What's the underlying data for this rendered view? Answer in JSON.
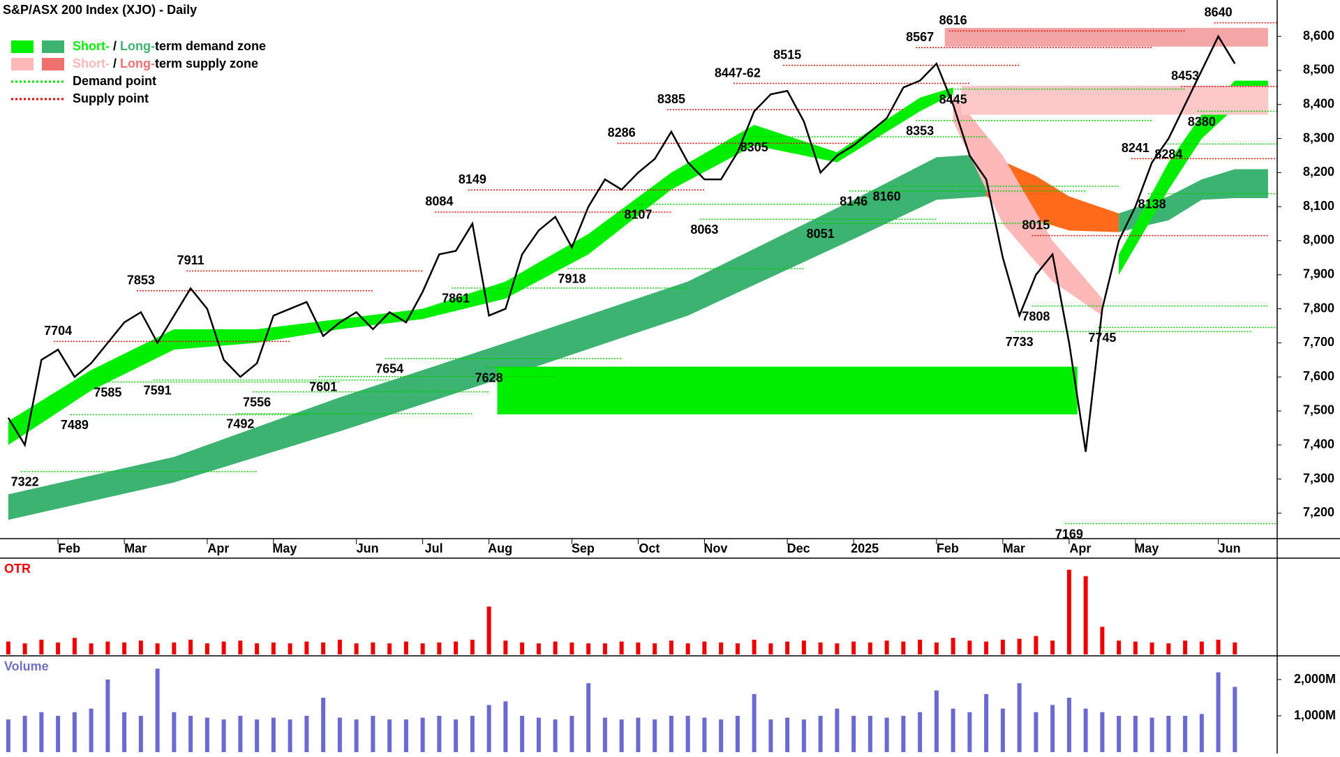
{
  "chart_data": [
    {
      "type": "line",
      "title": "S&P/ASX 200 Index (XJO) - Daily",
      "categories": [
        null,
        null,
        null,
        "Feb",
        null,
        null,
        null,
        "Mar",
        null,
        null,
        null,
        null,
        "Apr",
        null,
        null,
        null,
        "May",
        null,
        null,
        null,
        null,
        "Jun",
        null,
        null,
        null,
        "Jul",
        null,
        null,
        null,
        "Aug",
        null,
        null,
        null,
        null,
        "Sep",
        null,
        null,
        null,
        "Oct",
        null,
        null,
        null,
        "Nov",
        null,
        null,
        null,
        null,
        "Dec",
        null,
        null,
        null,
        "2025",
        null,
        null,
        null,
        null,
        "Feb",
        null,
        null,
        null,
        "Mar",
        null,
        null,
        null,
        "Apr",
        null,
        null,
        null,
        "May",
        null,
        null,
        null,
        null,
        "Jun",
        null
      ],
      "values": [
        7480,
        7400,
        7650,
        7680,
        7600,
        7640,
        7700,
        7760,
        7790,
        7700,
        7780,
        7860,
        7800,
        7650,
        7600,
        7640,
        7780,
        7800,
        7820,
        7720,
        7760,
        7790,
        7740,
        7790,
        7760,
        7850,
        7960,
        7970,
        8050,
        7780,
        7800,
        7960,
        8030,
        8070,
        7980,
        8100,
        8180,
        8150,
        8200,
        8240,
        8320,
        8230,
        8180,
        8180,
        8260,
        8380,
        8430,
        8440,
        8350,
        8200,
        8250,
        8280,
        8320,
        8360,
        8450,
        8470,
        8520,
        8400,
        8250,
        8180,
        7950,
        7780,
        7900,
        7960,
        7700,
        7380,
        7800,
        8000,
        8100,
        8230,
        8300,
        8400,
        8500,
        8600,
        8520
      ],
      "color": "#000000",
      "ylim": [
        7125,
        8670
      ],
      "yticks": [
        {
          "value": 7200,
          "label": "7,200"
        },
        {
          "value": 7300,
          "label": "7,300"
        },
        {
          "value": 7400,
          "label": "7,400"
        },
        {
          "value": 7500,
          "label": "7,500"
        },
        {
          "value": 7600,
          "label": "7,600"
        },
        {
          "value": 7700,
          "label": "7,700"
        },
        {
          "value": 7800,
          "label": "7,800"
        },
        {
          "value": 7900,
          "label": "7,900"
        },
        {
          "value": 8000,
          "label": "8,000"
        },
        {
          "value": 8100,
          "label": "8,100"
        },
        {
          "value": 8200,
          "label": "8,200"
        },
        {
          "value": 8300,
          "label": "8,300"
        },
        {
          "value": 8400,
          "label": "8,400"
        },
        {
          "value": 8500,
          "label": "8,500"
        },
        {
          "value": 8600,
          "label": "8,600"
        }
      ],
      "legend": [
        {
          "parts": [
            "Short-",
            " / ",
            "Long-",
            "term demand zone"
          ],
          "colors": [
            "#00ee00",
            "#3cb371"
          ]
        },
        {
          "parts": [
            "Short-",
            " / ",
            "Long-",
            "term supply zone"
          ],
          "colors": [
            "#ffb8b8",
            "#f07070"
          ]
        },
        {
          "parts": [
            "Demand point"
          ],
          "colors": [
            "#00dd00"
          ],
          "style": "dotted"
        },
        {
          "parts": [
            "Supply point"
          ],
          "colors": [
            "#dd0000"
          ],
          "style": "dotted"
        }
      ],
      "bands": [
        {
          "x": [
            0,
            10,
            20,
            30,
            41,
            51,
            56,
            59
          ],
          "lower": [
            7180,
            7290,
            7440,
            7600,
            7780,
            8005,
            8120,
            8130
          ],
          "upper": [
            7255,
            7365,
            7540,
            7700,
            7880,
            8120,
            8245,
            8255
          ],
          "color": "#3cb371"
        },
        {
          "x": [
            59,
            62,
            64,
            67
          ],
          "lower": [
            8130,
            8060,
            8030,
            8025
          ],
          "upper": [
            8255,
            8190,
            8130,
            8080
          ],
          "color": "#ff6a1a"
        },
        {
          "x": [
            67,
            70,
            72,
            74,
            76
          ],
          "lower": [
            8025,
            8060,
            8120,
            8125,
            8125
          ],
          "upper": [
            8080,
            8130,
            8180,
            8210,
            8210
          ],
          "color": "#3cb371"
        },
        {
          "x": [
            0,
            5,
            10,
            15,
            20,
            25,
            30,
            35,
            40,
            45,
            50,
            55,
            57
          ],
          "lower": [
            7400,
            7560,
            7680,
            7700,
            7740,
            7770,
            7830,
            7960,
            8150,
            8280,
            8230,
            8380,
            8430
          ],
          "upper": [
            7470,
            7620,
            7740,
            7740,
            7770,
            7800,
            7880,
            8020,
            8200,
            8340,
            8260,
            8420,
            8450
          ],
          "color": "#00ee00"
        },
        {
          "x": [
            57,
            60,
            63,
            66
          ],
          "lower": [
            8350,
            8050,
            7880,
            7780
          ],
          "upper": [
            8430,
            8250,
            8000,
            7830
          ],
          "color": "#ffb8b8"
        },
        {
          "x": [
            67,
            70,
            72,
            74,
            76
          ],
          "lower": [
            7900,
            8150,
            8300,
            8390,
            8390
          ],
          "upper": [
            7960,
            8230,
            8370,
            8470,
            8470
          ],
          "color": "#00ee00"
        }
      ],
      "zones": [
        {
          "x": [
            29.5,
            64.5
          ],
          "range": [
            7490,
            7630
          ],
          "color": "#00ee00"
        },
        {
          "x": [
            57.5,
            76
          ],
          "range": [
            8370,
            8455
          ],
          "color": "#ffc8c8"
        },
        {
          "x": [
            56.5,
            76
          ],
          "range": [
            8570,
            8625
          ],
          "color": "#f4a5a5"
        }
      ],
      "annotations": [
        {
          "x": 1,
          "value": 7322,
          "kind": "demand"
        },
        {
          "x": 3,
          "value": 7704,
          "kind": "supply"
        },
        {
          "x": 4,
          "value": 7489,
          "kind": "demand"
        },
        {
          "x": 6,
          "value": 7585,
          "kind": "demand"
        },
        {
          "x": 8,
          "value": 7853,
          "kind": "supply"
        },
        {
          "x": 9,
          "value": 7591,
          "kind": "demand"
        },
        {
          "x": 11,
          "value": 7911,
          "kind": "supply"
        },
        {
          "x": 14,
          "value": 7492,
          "kind": "demand"
        },
        {
          "x": 15,
          "value": 7556,
          "kind": "demand"
        },
        {
          "x": 19,
          "value": 7601,
          "kind": "demand"
        },
        {
          "x": 23,
          "value": 7654,
          "kind": "demand"
        },
        {
          "x": 26,
          "value": 8084,
          "kind": "supply"
        },
        {
          "x": 27,
          "value": 7861,
          "kind": "demand"
        },
        {
          "x": 28,
          "value": 8149,
          "kind": "supply"
        },
        {
          "x": 29,
          "value": 7628,
          "kind": "demand"
        },
        {
          "x": 34,
          "value": 7918,
          "kind": "demand"
        },
        {
          "x": 37,
          "value": 8286,
          "kind": "supply"
        },
        {
          "x": 38,
          "value": 8107,
          "kind": "demand"
        },
        {
          "x": 40,
          "value": 8385,
          "kind": "supply"
        },
        {
          "x": 42,
          "value": 8063,
          "kind": "demand"
        },
        {
          "x": 44,
          "value": 8462,
          "label": "8447-62",
          "kind": "supply"
        },
        {
          "x": 45,
          "value": 8305,
          "kind": "demand"
        },
        {
          "x": 47,
          "value": 8515,
          "kind": "supply"
        },
        {
          "x": 49,
          "value": 8051,
          "kind": "demand"
        },
        {
          "x": 51,
          "value": 8146,
          "kind": "demand"
        },
        {
          "x": 53,
          "value": 8160,
          "kind": "demand"
        },
        {
          "x": 55,
          "value": 8353,
          "kind": "demand"
        },
        {
          "x": 55,
          "value": 8567,
          "kind": "supply"
        },
        {
          "x": 57,
          "value": 8616,
          "kind": "supply"
        },
        {
          "x": 57,
          "value": 8445,
          "kind": "demand"
        },
        {
          "x": 61,
          "value": 7733,
          "kind": "demand"
        },
        {
          "x": 62,
          "value": 8015,
          "kind": "supply"
        },
        {
          "x": 62,
          "value": 7808,
          "kind": "demand"
        },
        {
          "x": 64,
          "value": 7169,
          "kind": "demand"
        },
        {
          "x": 66,
          "value": 7745,
          "kind": "demand"
        },
        {
          "x": 68,
          "value": 8241,
          "kind": "supply"
        },
        {
          "x": 69,
          "value": 8138,
          "kind": "demand"
        },
        {
          "x": 70,
          "value": 8284,
          "kind": "demand"
        },
        {
          "x": 71,
          "value": 8453,
          "kind": "supply"
        },
        {
          "x": 72,
          "value": 8380,
          "kind": "demand"
        },
        {
          "x": 73,
          "value": 8640,
          "kind": "supply"
        }
      ]
    },
    {
      "type": "bar",
      "title": "OTR",
      "values": [
        14,
        12,
        16,
        13,
        18,
        12,
        14,
        13,
        15,
        12,
        13,
        16,
        12,
        14,
        15,
        12,
        13,
        12,
        14,
        13,
        16,
        12,
        13,
        12,
        14,
        12,
        13,
        14,
        16,
        52,
        15,
        13,
        12,
        14,
        13,
        12,
        12,
        14,
        13,
        12,
        15,
        12,
        14,
        13,
        12,
        16,
        12,
        14,
        15,
        13,
        12,
        14,
        13,
        15,
        14,
        16,
        13,
        18,
        15,
        14,
        16,
        17,
        20,
        15,
        92,
        85,
        30,
        15,
        14,
        13,
        12,
        15,
        14,
        16,
        13
      ],
      "color": "#ee0000",
      "ylim": [
        0,
        100
      ]
    },
    {
      "type": "bar",
      "title": "Volume",
      "values": [
        900,
        1000,
        1100,
        1000,
        1100,
        1200,
        2000,
        1100,
        1000,
        2300,
        1100,
        1000,
        950,
        900,
        1000,
        900,
        950,
        900,
        1000,
        1500,
        950,
        900,
        1000,
        900,
        900,
        950,
        1000,
        900,
        1000,
        1300,
        1400,
        1000,
        950,
        900,
        1000,
        1900,
        950,
        900,
        950,
        900,
        1000,
        1000,
        950,
        900,
        1000,
        1600,
        900,
        950,
        900,
        1000,
        1200,
        1000,
        1000,
        950,
        1000,
        1100,
        1700,
        1200,
        1100,
        1600,
        1200,
        1900,
        1100,
        1300,
        1500,
        1200,
        1100,
        1000,
        1000,
        950,
        1000,
        1000,
        1050,
        2200,
        1800
      ],
      "color": "#6a6ad0",
      "ylim": [
        0,
        2500
      ],
      "yticks": [
        {
          "value": 1000,
          "label": "1,000M"
        },
        {
          "value": 2000,
          "label": "2,000M"
        }
      ]
    }
  ]
}
